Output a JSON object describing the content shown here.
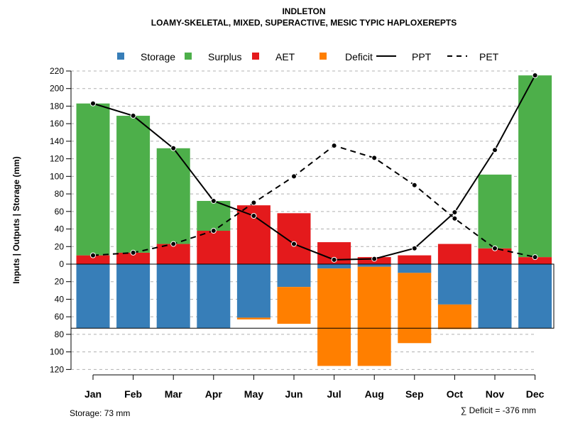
{
  "chart_data": {
    "type": "bar",
    "title": "INDLETON",
    "subtitle": "LOAMY-SKELETAL, MIXED, SUPERACTIVE, MESIC TYPIC HAPLOXEREPTS",
    "ylabel": "Inputs | Outputs | Storage    (mm)",
    "categories": [
      "Jan",
      "Feb",
      "Mar",
      "Apr",
      "May",
      "Jun",
      "Jul",
      "Aug",
      "Sep",
      "Oct",
      "Nov",
      "Dec"
    ],
    "y_upper_ticks": [
      "220",
      "200",
      "180",
      "160",
      "140",
      "120",
      "100",
      "80",
      "60",
      "40",
      "20",
      "0"
    ],
    "y_lower_ticks": [
      "20",
      "40",
      "60",
      "80",
      "100",
      "120"
    ],
    "ylim_upper": [
      0,
      220
    ],
    "ylim_lower": [
      0,
      120
    ],
    "legend": [
      {
        "name": "Storage",
        "kind": "box",
        "color": "#377EB8"
      },
      {
        "name": "Surplus",
        "kind": "box",
        "color": "#4DAF4A"
      },
      {
        "name": "AET",
        "kind": "box",
        "color": "#E41A1C"
      },
      {
        "name": "Deficit",
        "kind": "box",
        "color": "#FF7F00"
      },
      {
        "name": "PPT",
        "kind": "solid",
        "color": "#000000"
      },
      {
        "name": "PET",
        "kind": "dashed",
        "color": "#000000"
      }
    ],
    "series": [
      {
        "name": "AET",
        "color": "#E41A1C",
        "values": [
          10,
          13,
          23,
          38,
          67,
          58,
          25,
          8,
          10,
          23,
          18,
          8
        ]
      },
      {
        "name": "Surplus",
        "color": "#4DAF4A",
        "values": [
          173,
          156,
          109,
          34,
          0,
          0,
          0,
          0,
          0,
          0,
          84,
          207
        ]
      },
      {
        "name": "Storage",
        "color": "#377EB8",
        "values": [
          73,
          73,
          73,
          73,
          61,
          26,
          5,
          3,
          10,
          46,
          73,
          73
        ]
      },
      {
        "name": "Deficit",
        "color": "#FF7F00",
        "values": [
          0,
          0,
          0,
          0,
          2,
          42,
          111,
          113,
          80,
          28,
          0,
          0
        ]
      },
      {
        "name": "PPT",
        "color": "#000000",
        "values": [
          183,
          169,
          132,
          72,
          55,
          23,
          5,
          6,
          18,
          59,
          130,
          215
        ]
      },
      {
        "name": "PET",
        "color": "#000000",
        "values": [
          10,
          13,
          23,
          38,
          70,
          100,
          135,
          121,
          90,
          52,
          18,
          8
        ]
      }
    ],
    "storage_capacity": 73,
    "storage_label": "Storage: 73 mm",
    "deficit_label": "∑ Deficit = -376 mm"
  }
}
